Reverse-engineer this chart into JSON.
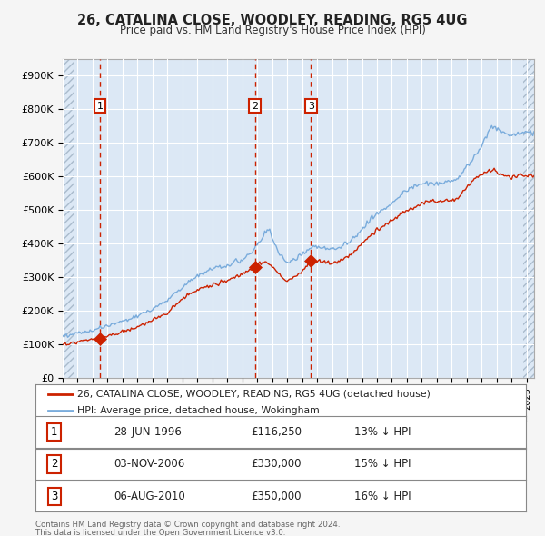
{
  "title": "26, CATALINA CLOSE, WOODLEY, READING, RG5 4UG",
  "subtitle": "Price paid vs. HM Land Registry's House Price Index (HPI)",
  "legend_line1": "26, CATALINA CLOSE, WOODLEY, READING, RG5 4UG (detached house)",
  "legend_line2": "HPI: Average price, detached house, Wokingham",
  "sale_dates_num": [
    1996.49,
    2006.84,
    2010.59
  ],
  "sale_prices": [
    116250,
    330000,
    350000
  ],
  "sale_labels": [
    "1",
    "2",
    "3"
  ],
  "table_rows": [
    [
      "1",
      "28-JUN-1996",
      "£116,250",
      "13% ↓ HPI"
    ],
    [
      "2",
      "03-NOV-2006",
      "£330,000",
      "15% ↓ HPI"
    ],
    [
      "3",
      "06-AUG-2010",
      "£350,000",
      "16% ↓ HPI"
    ]
  ],
  "footnote1": "Contains HM Land Registry data © Crown copyright and database right 2024.",
  "footnote2": "This data is licensed under the Open Government Licence v3.0.",
  "hpi_line_color": "#7aacdc",
  "price_line_color": "#cc2200",
  "vline_color": "#cc2200",
  "dot_color": "#cc2200",
  "plot_bg_color": "#dce8f5",
  "grid_color": "#ffffff",
  "fig_bg_color": "#f5f5f5",
  "ylim": [
    0,
    950000
  ],
  "yticks": [
    0,
    100000,
    200000,
    300000,
    400000,
    500000,
    600000,
    700000,
    800000,
    900000
  ],
  "ytick_labels": [
    "£0",
    "£100K",
    "£200K",
    "£300K",
    "£400K",
    "£500K",
    "£600K",
    "£700K",
    "£800K",
    "£900K"
  ],
  "xstart": 1994.0,
  "xend": 2025.5,
  "hpi_keypoints": [
    [
      1994.0,
      125000
    ],
    [
      1995.0,
      133000
    ],
    [
      1996.0,
      140000
    ],
    [
      1996.5,
      148000
    ],
    [
      1997.0,
      155000
    ],
    [
      1998.0,
      168000
    ],
    [
      1999.0,
      185000
    ],
    [
      2000.0,
      205000
    ],
    [
      2001.0,
      232000
    ],
    [
      2002.0,
      272000
    ],
    [
      2003.0,
      305000
    ],
    [
      2004.0,
      325000
    ],
    [
      2005.0,
      335000
    ],
    [
      2006.0,
      352000
    ],
    [
      2006.5,
      370000
    ],
    [
      2007.0,
      395000
    ],
    [
      2007.5,
      430000
    ],
    [
      2007.8,
      445000
    ],
    [
      2008.0,
      415000
    ],
    [
      2008.5,
      370000
    ],
    [
      2009.0,
      340000
    ],
    [
      2009.5,
      352000
    ],
    [
      2010.0,
      368000
    ],
    [
      2010.5,
      385000
    ],
    [
      2011.0,
      393000
    ],
    [
      2011.5,
      388000
    ],
    [
      2012.0,
      382000
    ],
    [
      2012.5,
      388000
    ],
    [
      2013.0,
      400000
    ],
    [
      2013.5,
      420000
    ],
    [
      2014.0,
      445000
    ],
    [
      2014.5,
      468000
    ],
    [
      2015.0,
      488000
    ],
    [
      2015.5,
      505000
    ],
    [
      2016.0,
      518000
    ],
    [
      2016.5,
      540000
    ],
    [
      2017.0,
      558000
    ],
    [
      2017.5,
      572000
    ],
    [
      2018.0,
      578000
    ],
    [
      2018.5,
      582000
    ],
    [
      2019.0,
      578000
    ],
    [
      2019.5,
      582000
    ],
    [
      2020.0,
      582000
    ],
    [
      2020.5,
      598000
    ],
    [
      2021.0,
      628000
    ],
    [
      2021.5,
      658000
    ],
    [
      2022.0,
      692000
    ],
    [
      2022.5,
      738000
    ],
    [
      2022.8,
      752000
    ],
    [
      2023.0,
      742000
    ],
    [
      2023.5,
      728000
    ],
    [
      2024.0,
      722000
    ],
    [
      2024.5,
      728000
    ],
    [
      2025.0,
      730000
    ],
    [
      2025.5,
      728000
    ]
  ],
  "price_keypoints": [
    [
      1994.0,
      100000
    ],
    [
      1995.0,
      108000
    ],
    [
      1996.0,
      115000
    ],
    [
      1996.49,
      116250
    ],
    [
      1997.0,
      123000
    ],
    [
      1998.0,
      138000
    ],
    [
      1999.0,
      152000
    ],
    [
      2000.0,
      170000
    ],
    [
      2001.0,
      195000
    ],
    [
      2002.0,
      235000
    ],
    [
      2003.0,
      262000
    ],
    [
      2004.0,
      278000
    ],
    [
      2005.0,
      290000
    ],
    [
      2006.0,
      308000
    ],
    [
      2006.5,
      320000
    ],
    [
      2006.84,
      330000
    ],
    [
      2007.0,
      340000
    ],
    [
      2007.5,
      348000
    ],
    [
      2008.0,
      332000
    ],
    [
      2008.5,
      305000
    ],
    [
      2009.0,
      290000
    ],
    [
      2009.5,
      300000
    ],
    [
      2010.0,
      318000
    ],
    [
      2010.59,
      350000
    ],
    [
      2011.0,
      348000
    ],
    [
      2011.5,
      345000
    ],
    [
      2012.0,
      342000
    ],
    [
      2012.5,
      348000
    ],
    [
      2013.0,
      360000
    ],
    [
      2013.5,
      378000
    ],
    [
      2014.0,
      400000
    ],
    [
      2014.5,
      422000
    ],
    [
      2015.0,
      440000
    ],
    [
      2015.5,
      455000
    ],
    [
      2016.0,
      468000
    ],
    [
      2016.5,
      485000
    ],
    [
      2017.0,
      498000
    ],
    [
      2017.5,
      508000
    ],
    [
      2018.0,
      522000
    ],
    [
      2018.5,
      528000
    ],
    [
      2019.0,
      522000
    ],
    [
      2019.5,
      528000
    ],
    [
      2020.0,
      528000
    ],
    [
      2020.5,
      542000
    ],
    [
      2021.0,
      568000
    ],
    [
      2021.5,
      592000
    ],
    [
      2022.0,
      608000
    ],
    [
      2022.5,
      618000
    ],
    [
      2022.8,
      622000
    ],
    [
      2023.0,
      612000
    ],
    [
      2023.5,
      602000
    ],
    [
      2024.0,
      598000
    ],
    [
      2024.5,
      604000
    ],
    [
      2025.0,
      602000
    ],
    [
      2025.5,
      600000
    ]
  ]
}
